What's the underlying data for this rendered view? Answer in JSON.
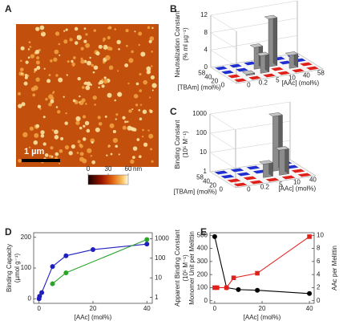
{
  "chart_data": [
    {
      "type": "image",
      "panel": "A",
      "scale_bar": "1 µm",
      "clim": [
        0,
        60
      ],
      "cticks": [
        0,
        30,
        60
      ],
      "cunit": "nm"
    },
    {
      "type": "bar3d",
      "panel": "B",
      "y_label": [
        "Neutralization Constant",
        "(% ml µg⁻¹)"
      ],
      "x_label": "[AAc] (mol%)",
      "z_label": "[TBAm] (mol%)",
      "x_categories": [
        0,
        0.2,
        5,
        10,
        40,
        58
      ],
      "z_categories": [
        0,
        20,
        40,
        58
      ],
      "values": [
        [
          null,
          null,
          null,
          null,
          null,
          null
        ],
        [
          null,
          0.3,
          4,
          null,
          3,
          null
        ],
        [
          null,
          null,
          5,
          11,
          null,
          null
        ],
        [
          null,
          null,
          null,
          null,
          null,
          null
        ]
      ],
      "ylim": [
        0,
        12
      ],
      "yticks": [
        0,
        4,
        8,
        12
      ],
      "color": "#8c8c8c"
    },
    {
      "type": "bar3d",
      "panel": "C",
      "y_label": [
        "Binding Constant",
        "(10⁵ M⁻¹)"
      ],
      "x_label": "[AAc] (mol%)",
      "z_label": "[TBAm] (mol%)",
      "x_categories": [
        0,
        0.2,
        5,
        10,
        40
      ],
      "z_categories": [
        0,
        20,
        40,
        58
      ],
      "values": [
        [
          null,
          null,
          null,
          null,
          null
        ],
        [
          null,
          null,
          5,
          20,
          null
        ],
        [
          null,
          null,
          null,
          700,
          null
        ],
        [
          null,
          null,
          null,
          null,
          null
        ]
      ],
      "ylim": [
        1,
        1000
      ],
      "log": true,
      "yticks": [
        1,
        10,
        100,
        1000
      ],
      "color": "#8c8c8c"
    },
    {
      "type": "line",
      "panel": "D",
      "x_label": "[AAc] (mol%)",
      "y_label": [
        "Binding Capacity",
        "(µmol g⁻¹)"
      ],
      "y2_label": [
        "Apparent Binding Constant",
        "(10⁵ M⁻¹)"
      ],
      "xlim": [
        -2,
        42
      ],
      "xticks": [
        0,
        20,
        40
      ],
      "ylim": [
        -15,
        215
      ],
      "yticks": [
        0,
        100,
        200
      ],
      "y2lim": [
        0.5,
        2000
      ],
      "y2log": true,
      "y2ticks": [
        1,
        10,
        100,
        1000
      ],
      "series": [
        {
          "x": [
            0,
            0.2,
            1,
            5,
            10,
            20,
            40
          ],
          "values": [
            0,
            8,
            20,
            105,
            140,
            160,
            178
          ],
          "color": "#1f1fbf",
          "marker": "circle"
        },
        {
          "x": [
            5,
            10,
            40
          ],
          "values": [
            5,
            18,
            900
          ],
          "color": "#2aa52a",
          "marker": "circle",
          "axis": "y2"
        }
      ]
    },
    {
      "type": "line",
      "panel": "E",
      "x_label": "[AAc] (mol%)",
      "y_label": [
        "Monomer Unit per Melittin"
      ],
      "y2_label": [
        "AAc per Melittin"
      ],
      "xlim": [
        -2,
        42
      ],
      "xticks": [
        0,
        20,
        40
      ],
      "ylim": [
        -20,
        520
      ],
      "yticks": [
        0,
        100,
        200,
        300,
        400,
        500
      ],
      "y2lim": [
        -0.4,
        10.4
      ],
      "y2ticks": [
        0,
        2,
        4,
        6,
        8,
        10
      ],
      "series": [
        {
          "x": [
            0,
            5,
            10,
            18,
            40
          ],
          "values": [
            490,
            100,
            85,
            80,
            55
          ],
          "color": "#000000",
          "marker": "circle"
        },
        {
          "x": [
            0,
            1,
            5,
            8,
            18,
            40
          ],
          "values": [
            2,
            2,
            2,
            3.5,
            4.2,
            9.8
          ],
          "color": "#e0201a",
          "marker": "square",
          "axis": "y2"
        }
      ]
    }
  ]
}
